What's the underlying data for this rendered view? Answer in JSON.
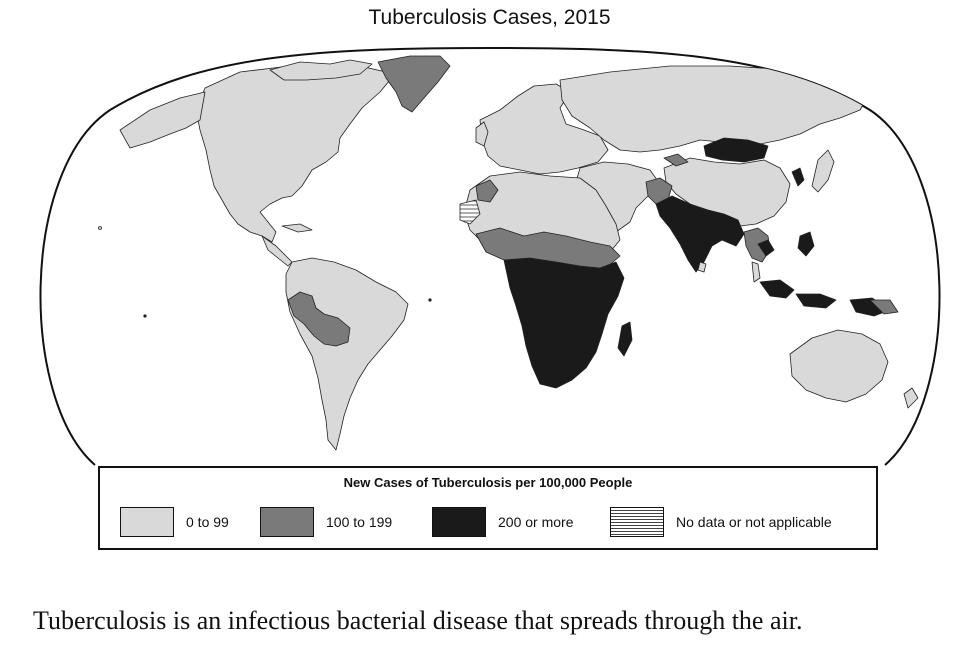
{
  "title": "Tuberculosis Cases, 2015",
  "legend": {
    "title": "New Cases of Tuberculosis per 100,000 People",
    "items": [
      {
        "label": "0 to 99",
        "color": "#d9d9d9"
      },
      {
        "label": "100 to 199",
        "color": "#7a7a7a"
      },
      {
        "label": "200 or more",
        "color": "#1a1a1a"
      },
      {
        "label": "No data or not applicable",
        "pattern": "horizontal-hatch"
      }
    ]
  },
  "caption": "Tuberculosis is an infectious bacterial disease that spreads through the air."
}
